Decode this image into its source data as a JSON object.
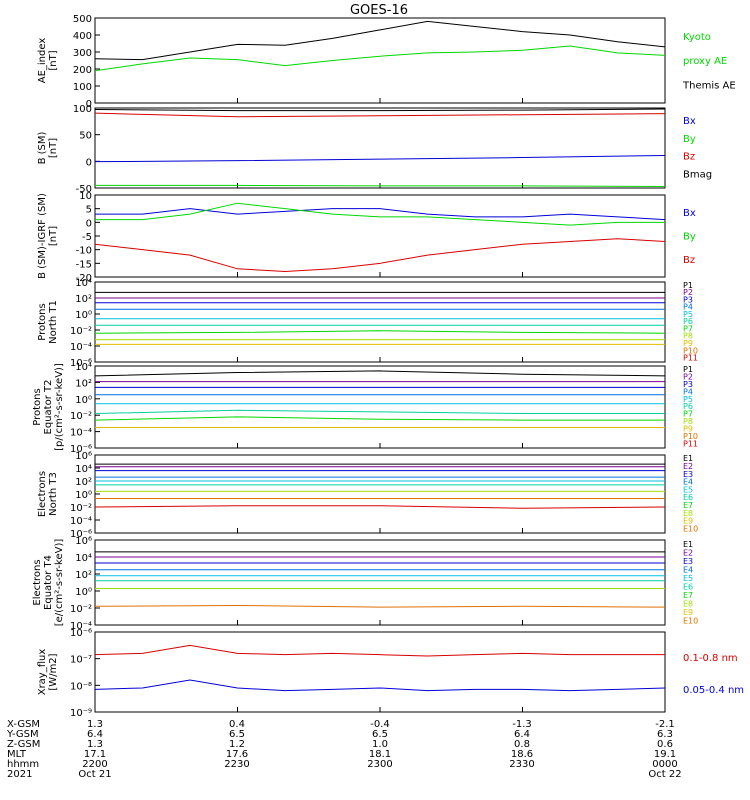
{
  "title": "GOES-16",
  "colors": {
    "black": "#000000",
    "green": "#00d800",
    "red": "#d80000",
    "blue": "#0000d8",
    "P1": "#000000",
    "P2": "#7a0090",
    "P3": "#0000d8",
    "P4": "#0070e0",
    "P5": "#00c0e0",
    "P6": "#00d0a0",
    "P7": "#00d800",
    "P8": "#a0e000",
    "P9": "#e0c000",
    "P10": "#e07000",
    "P11": "#d80000"
  },
  "x_ticks": [
    {
      "label": "2200"
    },
    {
      "label": "2230"
    },
    {
      "label": "2300"
    },
    {
      "label": "2330"
    },
    {
      "label": "0000"
    }
  ],
  "footer": {
    "row_labels": [
      "X-GSM",
      "Y-GSM",
      "Z-GSM",
      "MLT",
      "hhmm",
      "2021"
    ],
    "columns": [
      [
        "1.3",
        "6.4",
        "1.3",
        "17.1",
        "2200",
        "Oct 21"
      ],
      [
        "0.4",
        "6.5",
        "1.2",
        "17.6",
        "2230",
        ""
      ],
      [
        "-0.4",
        "6.5",
        "1.0",
        "18.1",
        "2300",
        ""
      ],
      [
        "-1.3",
        "6.4",
        "0.8",
        "18.6",
        "2330",
        ""
      ],
      [
        "-2.1",
        "6.3",
        "0.6",
        "19.1",
        "0000",
        "Oct 22"
      ]
    ]
  },
  "chart_data": [
    {
      "type": "line",
      "id": "ae",
      "ylabel": [
        "AE_index",
        "[nT]"
      ],
      "ylim": [
        0,
        500
      ],
      "yticks": [
        "0",
        "100",
        "200",
        "300",
        "400",
        "500"
      ],
      "legend": [
        {
          "text": "Kyoto",
          "color": "green"
        },
        {
          "text": "proxy AE",
          "color": "green"
        },
        {
          "text": "Themis AE",
          "color": "black"
        }
      ],
      "x": [
        0,
        10,
        20,
        30,
        40,
        50,
        60,
        70,
        80,
        90,
        100,
        110,
        120
      ],
      "series": [
        {
          "name": "Themis AE",
          "color": "black",
          "values": [
            260,
            255,
            300,
            345,
            340,
            380,
            430,
            480,
            450,
            420,
            400,
            360,
            330
          ]
        },
        {
          "name": "Kyoto proxy AE",
          "color": "green",
          "values": [
            190,
            230,
            265,
            255,
            220,
            250,
            275,
            295,
            300,
            310,
            335,
            295,
            280
          ]
        }
      ]
    },
    {
      "type": "line",
      "id": "bsm",
      "ylabel": [
        "B (SM)",
        "[nT]"
      ],
      "ylim": [
        -55,
        100
      ],
      "yticks": [
        "-50",
        "0",
        "50",
        "100"
      ],
      "legend": [
        {
          "text": "Bx",
          "color": "blue"
        },
        {
          "text": "By",
          "color": "green"
        },
        {
          "text": "Bz",
          "color": "red"
        },
        {
          "text": "Bmag",
          "color": "black"
        }
      ],
      "x": [
        0,
        30,
        60,
        90,
        120
      ],
      "series": [
        {
          "name": "Bmag",
          "color": "black",
          "values": [
            97,
            95,
            95,
            96,
            98
          ]
        },
        {
          "name": "Bz",
          "color": "red",
          "values": [
            90,
            83,
            85,
            87,
            89
          ]
        },
        {
          "name": "Bx",
          "color": "blue",
          "values": [
            -4,
            -2,
            1,
            4,
            8
          ]
        },
        {
          "name": "By",
          "color": "green",
          "values": [
            -50,
            -50,
            -51,
            -51,
            -52
          ]
        }
      ]
    },
    {
      "type": "line",
      "id": "bigrf",
      "ylabel": [
        "B (SM)-IGRF (SM)",
        "[nT]"
      ],
      "ylim": [
        -20,
        10
      ],
      "yticks": [
        "-20",
        "-15",
        "-10",
        "-5",
        "0",
        "5",
        "10"
      ],
      "legend": [
        {
          "text": "Bx",
          "color": "blue"
        },
        {
          "text": "By",
          "color": "green"
        },
        {
          "text": "Bz",
          "color": "red"
        }
      ],
      "x": [
        0,
        10,
        20,
        30,
        40,
        50,
        60,
        70,
        80,
        90,
        100,
        110,
        120
      ],
      "series": [
        {
          "name": "Bx",
          "color": "blue",
          "values": [
            3,
            3,
            5,
            3,
            4,
            5,
            5,
            3,
            2,
            2,
            3,
            2,
            1
          ]
        },
        {
          "name": "By",
          "color": "green",
          "values": [
            1,
            1,
            3,
            7,
            5,
            3,
            2,
            2,
            1,
            0,
            -1,
            0,
            0
          ]
        },
        {
          "name": "Bz",
          "color": "red",
          "values": [
            -8,
            -10,
            -12,
            -17,
            -18,
            -17,
            -15,
            -12,
            -10,
            -8,
            -7,
            -6,
            -7
          ]
        }
      ]
    },
    {
      "type": "line",
      "id": "p1",
      "ylabel": [
        "Protons",
        "North T1"
      ],
      "ylim_log": [
        -6,
        4
      ],
      "yticks": [
        "10⁻⁶",
        "10⁻⁴",
        "10⁻²",
        "10⁰",
        "10²",
        "10⁴"
      ],
      "legend": [
        {
          "text": "P1",
          "color": "P1"
        },
        {
          "text": "P2",
          "color": "P2"
        },
        {
          "text": "P3",
          "color": "P3"
        },
        {
          "text": "P4",
          "color": "P4"
        },
        {
          "text": "P5",
          "color": "P5"
        },
        {
          "text": "P6",
          "color": "P6"
        },
        {
          "text": "P7",
          "color": "P7"
        },
        {
          "text": "P8",
          "color": "P8"
        },
        {
          "text": "P9",
          "color": "P9"
        },
        {
          "text": "P10",
          "color": "P10"
        },
        {
          "text": "P11",
          "color": "P11"
        }
      ],
      "x": [
        0,
        30,
        60,
        90,
        120
      ],
      "series": [
        {
          "name": "P1",
          "color": "P1",
          "values": [
            2.7,
            2.7,
            2.7,
            2.7,
            2.7
          ]
        },
        {
          "name": "P2",
          "color": "P2",
          "values": [
            2.0,
            2.0,
            2.0,
            2.0,
            2.0
          ]
        },
        {
          "name": "P3",
          "color": "P3",
          "values": [
            1.4,
            1.4,
            1.4,
            1.4,
            1.4
          ]
        },
        {
          "name": "P4",
          "color": "P4",
          "values": [
            0.6,
            0.6,
            0.6,
            0.6,
            0.6
          ]
        },
        {
          "name": "P5",
          "color": "P5",
          "values": [
            -0.6,
            -0.6,
            -0.6,
            -0.6,
            -0.6
          ]
        },
        {
          "name": "P6",
          "color": "P6",
          "values": [
            -1.4,
            -1.4,
            -1.4,
            -1.4,
            -1.4
          ]
        },
        {
          "name": "P7",
          "color": "P7",
          "values": [
            -2.4,
            -2.3,
            -2.1,
            -2.3,
            -2.4
          ]
        },
        {
          "name": "P8",
          "color": "P8",
          "values": [
            -3.2,
            -3.2,
            -3.2,
            -3.2,
            -3.2
          ]
        },
        {
          "name": "P9",
          "color": "P9",
          "values": [
            -3.8,
            -3.8,
            -3.8,
            -3.8,
            -3.8
          ]
        }
      ]
    },
    {
      "type": "line",
      "id": "p2",
      "ylabel": [
        "Protons",
        "Equator T2",
        "[p/(cm²-s-sr-keV)]"
      ],
      "ylim_log": [
        -6,
        4
      ],
      "yticks": [
        "10⁻⁶",
        "10⁻⁴",
        "10⁻²",
        "10⁰",
        "10²",
        "10⁴"
      ],
      "legend": [
        {
          "text": "P1",
          "color": "P1"
        },
        {
          "text": "P2",
          "color": "P2"
        },
        {
          "text": "P3",
          "color": "P3"
        },
        {
          "text": "P4",
          "color": "P4"
        },
        {
          "text": "P5",
          "color": "P5"
        },
        {
          "text": "P6",
          "color": "P6"
        },
        {
          "text": "P7",
          "color": "P7"
        },
        {
          "text": "P8",
          "color": "P8"
        },
        {
          "text": "P9",
          "color": "P9"
        },
        {
          "text": "P10",
          "color": "P10"
        },
        {
          "text": "P11",
          "color": "P11"
        }
      ],
      "x": [
        0,
        30,
        60,
        90,
        120
      ],
      "series": [
        {
          "name": "P1",
          "color": "P1",
          "values": [
            2.8,
            3.2,
            3.4,
            3.0,
            2.8
          ]
        },
        {
          "name": "P2",
          "color": "P2",
          "values": [
            2.1,
            2.1,
            2.1,
            2.1,
            2.1
          ]
        },
        {
          "name": "P3",
          "color": "P3",
          "values": [
            1.4,
            1.4,
            1.4,
            1.4,
            1.4
          ]
        },
        {
          "name": "P4",
          "color": "P4",
          "values": [
            0.5,
            0.5,
            0.5,
            0.5,
            0.5
          ]
        },
        {
          "name": "P5",
          "color": "P5",
          "values": [
            -0.6,
            -0.6,
            -0.6,
            -0.6,
            -0.6
          ]
        },
        {
          "name": "P6",
          "color": "P6",
          "values": [
            -1.8,
            -1.4,
            -1.6,
            -1.8,
            -1.8
          ]
        },
        {
          "name": "P7",
          "color": "P7",
          "values": [
            -2.6,
            -2.2,
            -2.5,
            -2.6,
            -2.6
          ]
        },
        {
          "name": "P9",
          "color": "P9",
          "values": [
            -3.5,
            -3.5,
            -3.5,
            -3.5,
            -3.5
          ]
        }
      ]
    },
    {
      "type": "line",
      "id": "e1",
      "ylabel": [
        "Electrons",
        "North T3"
      ],
      "ylim_log": [
        -6,
        6
      ],
      "yticks": [
        "10⁻⁶",
        "10⁻⁴",
        "10⁻²",
        "10⁰",
        "10²",
        "10⁴",
        "10⁶"
      ],
      "legend": [
        {
          "text": "E1",
          "color": "P1"
        },
        {
          "text": "E2",
          "color": "P2"
        },
        {
          "text": "E3",
          "color": "P3"
        },
        {
          "text": "E4",
          "color": "P4"
        },
        {
          "text": "E5",
          "color": "P5"
        },
        {
          "text": "E6",
          "color": "P6"
        },
        {
          "text": "E7",
          "color": "P7"
        },
        {
          "text": "E8",
          "color": "P8"
        },
        {
          "text": "E9",
          "color": "P9"
        },
        {
          "text": "E10",
          "color": "P10"
        }
      ],
      "x": [
        0,
        30,
        60,
        90,
        120
      ],
      "series": [
        {
          "name": "E1",
          "color": "P1",
          "values": [
            4.6,
            4.6,
            4.6,
            4.6,
            4.6
          ]
        },
        {
          "name": "E2",
          "color": "P2",
          "values": [
            4.2,
            4.2,
            4.2,
            4.2,
            4.2
          ]
        },
        {
          "name": "E3",
          "color": "P3",
          "values": [
            3.6,
            3.6,
            3.6,
            3.6,
            3.6
          ]
        },
        {
          "name": "E4",
          "color": "P4",
          "values": [
            2.6,
            2.6,
            2.6,
            2.6,
            2.6
          ]
        },
        {
          "name": "E5",
          "color": "P5",
          "values": [
            2.0,
            2.0,
            2.0,
            2.0,
            2.0
          ]
        },
        {
          "name": "E6",
          "color": "P6",
          "values": [
            1.4,
            1.4,
            1.4,
            1.4,
            1.4
          ]
        },
        {
          "name": "E7",
          "color": "P8",
          "values": [
            0.4,
            0.4,
            0.4,
            0.4,
            0.4
          ]
        },
        {
          "name": "E8",
          "color": "P10",
          "values": [
            -0.7,
            -0.7,
            -0.7,
            -0.7,
            -0.7
          ]
        },
        {
          "name": "E10",
          "color": "P11",
          "values": [
            -2.0,
            -1.8,
            -1.8,
            -2.2,
            -2.0
          ]
        }
      ]
    },
    {
      "type": "line",
      "id": "e2",
      "ylabel": [
        "Electrons",
        "Equator T4",
        "[e/(cm²-s-sr-keV)]"
      ],
      "ylim_log": [
        -4,
        6
      ],
      "yticks": [
        "10⁻⁴",
        "10⁻²",
        "10⁰",
        "10²",
        "10⁴",
        "10⁶"
      ],
      "legend": [
        {
          "text": "E1",
          "color": "P1"
        },
        {
          "text": "E2",
          "color": "P2"
        },
        {
          "text": "E3",
          "color": "P3"
        },
        {
          "text": "E4",
          "color": "P4"
        },
        {
          "text": "E5",
          "color": "P5"
        },
        {
          "text": "E6",
          "color": "P6"
        },
        {
          "text": "E7",
          "color": "P7"
        },
        {
          "text": "E8",
          "color": "P8"
        },
        {
          "text": "E9",
          "color": "P9"
        },
        {
          "text": "E10",
          "color": "P10"
        }
      ],
      "x": [
        0,
        30,
        60,
        90,
        120
      ],
      "series": [
        {
          "name": "E1",
          "color": "P1",
          "values": [
            4.6,
            4.6,
            4.6,
            4.6,
            4.6
          ]
        },
        {
          "name": "E2",
          "color": "P2",
          "values": [
            4.0,
            4.0,
            4.0,
            4.0,
            4.0
          ]
        },
        {
          "name": "E3",
          "color": "P3",
          "values": [
            3.3,
            3.3,
            3.3,
            3.3,
            3.3
          ]
        },
        {
          "name": "E4",
          "color": "P4",
          "values": [
            2.5,
            2.5,
            2.5,
            2.5,
            2.5
          ]
        },
        {
          "name": "E5",
          "color": "P5",
          "values": [
            1.8,
            1.8,
            1.8,
            1.8,
            1.8
          ]
        },
        {
          "name": "E6",
          "color": "P6",
          "values": [
            1.2,
            1.2,
            1.2,
            1.2,
            1.2
          ]
        },
        {
          "name": "E7",
          "color": "P8",
          "values": [
            0.3,
            0.3,
            0.3,
            0.3,
            0.3
          ]
        },
        {
          "name": "E8",
          "color": "P10",
          "values": [
            -1.8,
            -1.7,
            -1.9,
            -1.8,
            -1.9
          ]
        }
      ]
    },
    {
      "type": "line",
      "id": "xray",
      "ylabel": [
        "Xray_flux",
        "[W/m2]"
      ],
      "ylim_log": [
        -9,
        -6
      ],
      "yticks": [
        "10⁻⁹",
        "10⁻⁸",
        "10⁻⁷",
        "10⁻⁶"
      ],
      "legend": [
        {
          "text": "0.1-0.8 nm",
          "color": "red"
        },
        {
          "text": "0.05-0.4 nm",
          "color": "blue"
        }
      ],
      "x": [
        0,
        10,
        20,
        30,
        40,
        50,
        60,
        70,
        80,
        90,
        100,
        110,
        120
      ],
      "series": [
        {
          "name": "0.1-0.8 nm",
          "color": "red",
          "values": [
            -6.85,
            -6.8,
            -6.5,
            -6.8,
            -6.85,
            -6.8,
            -6.85,
            -6.9,
            -6.85,
            -6.8,
            -6.85,
            -6.85,
            -6.85
          ]
        },
        {
          "name": "0.05-0.4 nm",
          "color": "blue",
          "values": [
            -8.15,
            -8.1,
            -7.8,
            -8.1,
            -8.2,
            -8.15,
            -8.1,
            -8.2,
            -8.15,
            -8.15,
            -8.2,
            -8.15,
            -8.1
          ]
        }
      ]
    }
  ]
}
